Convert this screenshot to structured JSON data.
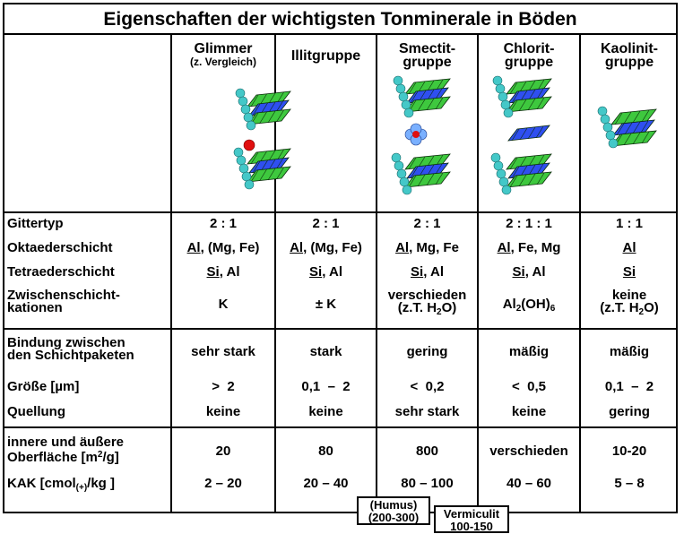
{
  "title": "Eigenschaften der wichtigsten Tonminerale in Böden",
  "columns": [
    {
      "name": "Glimmer",
      "sub": "(z. Vergleich)"
    },
    {
      "name": "Illitgruppe",
      "sub": ""
    },
    {
      "name": "Smectit-",
      "sub": "gruppe"
    },
    {
      "name": "Chlorit-",
      "sub": "gruppe"
    },
    {
      "name": "Kaolinit-",
      "sub": "gruppe"
    }
  ],
  "rows": {
    "gittertyp": {
      "label": "Gittertyp",
      "values": [
        "2 : 1",
        "2 : 1",
        "2 : 1",
        "2 : 1 : 1",
        "1 : 1"
      ]
    },
    "oktaeder": {
      "label": "Oktaederschicht",
      "rest": [
        ", (Mg, Fe)",
        ", (Mg, Fe)",
        ", Mg, Fe",
        ", Fe, Mg",
        ""
      ],
      "main": [
        "Al",
        "Al",
        "Al",
        "Al",
        "Al"
      ]
    },
    "tetraeder": {
      "label": "Tetraederschicht",
      "main": [
        "Si",
        "Si",
        "Si",
        "Si",
        "Si"
      ],
      "rest": [
        ", Al",
        ", Al",
        ", Al",
        ", Al",
        ""
      ]
    },
    "zwischen": {
      "label1": "Zwischenschicht-",
      "label2": "kationen",
      "v1": "K",
      "v2": "± K",
      "v3a": "verschieden",
      "v3b": "(z.T. H",
      "v3c": "O)",
      "v4a": "Al",
      "v4b": "(OH)",
      "v4c": "6",
      "v5a": "keine",
      "v5b": "(z.T. H",
      "v5c": "O)",
      "sub2": "2"
    },
    "bindung": {
      "label1": "Bindung zwischen",
      "label2": "den Schichtpaketen",
      "values": [
        "sehr stark",
        "stark",
        "gering",
        "mäßig",
        "mäßig"
      ]
    },
    "groesse": {
      "label": "Größe [µm]",
      "values": [
        ">  2",
        "0,1  –  2",
        "<  0,2",
        "<  0,5",
        "0,1  –  2"
      ]
    },
    "quellung": {
      "label": "Quellung",
      "values": [
        "keine",
        "keine",
        "sehr stark",
        "keine",
        "gering"
      ]
    },
    "oberflaeche": {
      "label1": "innere und äußere",
      "label2a": "Oberfläche [m",
      "label2b": "2",
      "label2c": "/g]",
      "values": [
        "20",
        "80",
        "800",
        "verschieden",
        "10-20"
      ]
    },
    "kak": {
      "label_a": "KAK [cmol",
      "label_b": "(+)",
      "label_c": "/kg ]",
      "values": [
        "2 – 20",
        "20 – 40",
        "80 – 100",
        "40 – 60",
        "5 – 8"
      ]
    }
  },
  "notes": {
    "humus": {
      "line1": "(Humus)",
      "line2": "(200-300)"
    },
    "vermiculit": {
      "line1": "Vermiculit",
      "line2": "100-150"
    }
  },
  "colors": {
    "tetra": "#2f4ff0",
    "octa": "#3ec83e",
    "atom": "#44c8c8",
    "cation": "#e01010"
  }
}
